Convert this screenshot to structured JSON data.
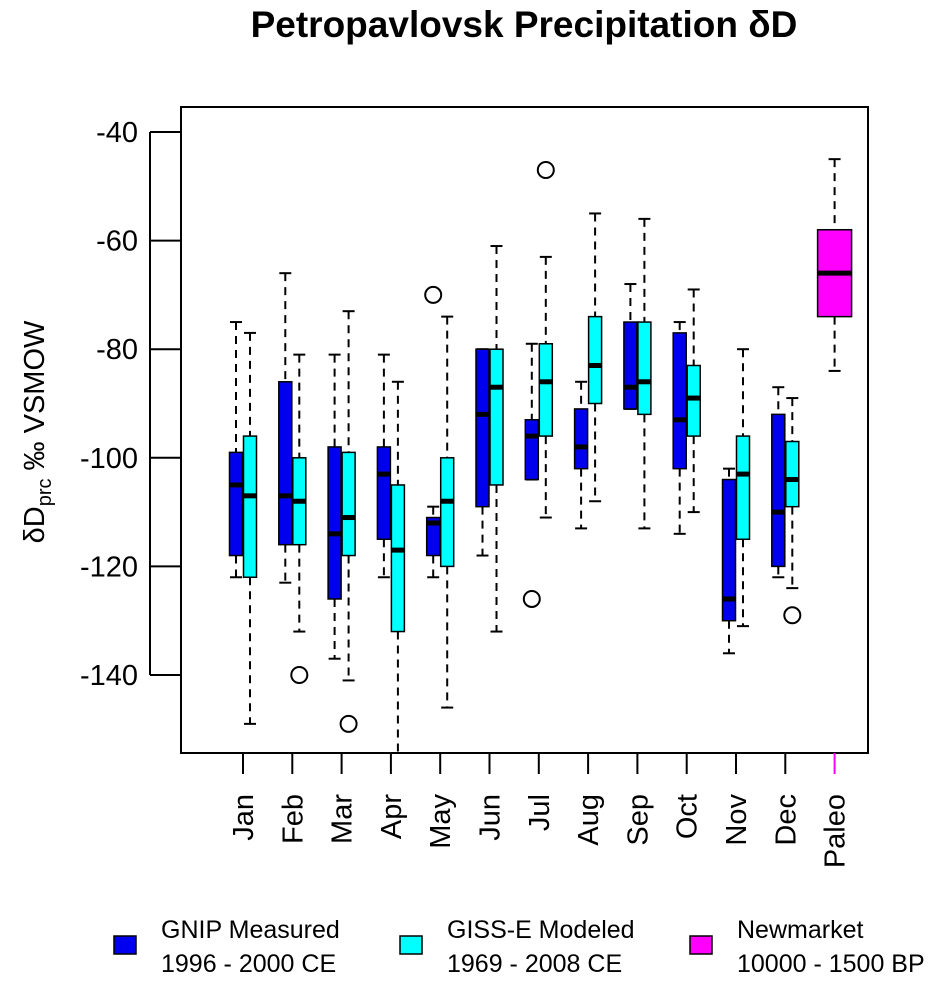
{
  "chart_data": {
    "type": "boxplot",
    "title": "Petropavlovsk Precipitation δD",
    "ylabel": {
      "main": "δD",
      "sub": "prc",
      "rest": " ‰ VSMOW"
    },
    "ylim": [
      -155,
      -35
    ],
    "yticks": [
      -40,
      -60,
      -80,
      -100,
      -120,
      -140
    ],
    "ytick_labels": [
      "-40",
      "-60",
      "-80",
      "-100",
      "-120",
      "-140"
    ],
    "categories": [
      "Jan",
      "Feb",
      "Mar",
      "Apr",
      "May",
      "Jun",
      "Jul",
      "Aug",
      "Sep",
      "Oct",
      "Nov",
      "Dec",
      "Paleo"
    ],
    "category_colors": [
      "#000000",
      "#000000",
      "#000000",
      "#000000",
      "#000000",
      "#000000",
      "#000000",
      "#000000",
      "#000000",
      "#000000",
      "#000000",
      "#000000",
      "#ff00ff"
    ],
    "series": [
      {
        "name": "GNIP Measured",
        "color": "#0000ee",
        "boxes": [
          {
            "cat": "Jan",
            "whislo": -122,
            "q1": -118,
            "med": -105,
            "q3": -99,
            "whishi": -75,
            "outliers": []
          },
          {
            "cat": "Feb",
            "whislo": -123,
            "q1": -116,
            "med": -107,
            "q3": -86,
            "whishi": -66,
            "outliers": []
          },
          {
            "cat": "Mar",
            "whislo": -137,
            "q1": -126,
            "med": -114,
            "q3": -98,
            "whishi": -81,
            "outliers": []
          },
          {
            "cat": "Apr",
            "whislo": -122,
            "q1": -115,
            "med": -103,
            "q3": -98,
            "whishi": -81,
            "outliers": []
          },
          {
            "cat": "May",
            "whislo": -122,
            "q1": -118,
            "med": -112,
            "q3": -111,
            "whishi": -109,
            "outliers": [
              -70
            ]
          },
          {
            "cat": "Jun",
            "whislo": -118,
            "q1": -109,
            "med": -92,
            "q3": -80,
            "whishi": -80,
            "outliers": []
          },
          {
            "cat": "Jul",
            "whislo": -104,
            "q1": -104,
            "med": -96,
            "q3": -93,
            "whishi": -79,
            "outliers": [
              -126
            ]
          },
          {
            "cat": "Aug",
            "whislo": -113,
            "q1": -102,
            "med": -98,
            "q3": -91,
            "whishi": -86,
            "outliers": []
          },
          {
            "cat": "Sep",
            "whislo": -91,
            "q1": -91,
            "med": -87,
            "q3": -75,
            "whishi": -68,
            "outliers": []
          },
          {
            "cat": "Oct",
            "whislo": -114,
            "q1": -102,
            "med": -93,
            "q3": -77,
            "whishi": -75,
            "outliers": []
          },
          {
            "cat": "Nov",
            "whislo": -136,
            "q1": -130,
            "med": -126,
            "q3": -104,
            "whishi": -102,
            "outliers": []
          },
          {
            "cat": "Dec",
            "whislo": -122,
            "q1": -120,
            "med": -110,
            "q3": -92,
            "whishi": -87,
            "outliers": []
          }
        ]
      },
      {
        "name": "GISS-E Modeled",
        "color": "#00ffff",
        "boxes": [
          {
            "cat": "Jan",
            "whislo": -149,
            "q1": -122,
            "med": -107,
            "q3": -96,
            "whishi": -77,
            "outliers": []
          },
          {
            "cat": "Feb",
            "whislo": -132,
            "q1": -116,
            "med": -108,
            "q3": -100,
            "whishi": -81,
            "outliers": [
              -140
            ]
          },
          {
            "cat": "Mar",
            "whislo": -141,
            "q1": -118,
            "med": -111,
            "q3": -99,
            "whishi": -73,
            "outliers": [
              -149
            ]
          },
          {
            "cat": "Apr",
            "whislo": -156,
            "q1": -132,
            "med": -117,
            "q3": -105,
            "whishi": -86,
            "outliers": []
          },
          {
            "cat": "May",
            "whislo": -146,
            "q1": -120,
            "med": -108,
            "q3": -100,
            "whishi": -74,
            "outliers": []
          },
          {
            "cat": "Jun",
            "whislo": -132,
            "q1": -105,
            "med": -87,
            "q3": -80,
            "whishi": -61,
            "outliers": []
          },
          {
            "cat": "Jul",
            "whislo": -111,
            "q1": -96,
            "med": -86,
            "q3": -79,
            "whishi": -63,
            "outliers": [
              -47
            ]
          },
          {
            "cat": "Aug",
            "whislo": -108,
            "q1": -90,
            "med": -83,
            "q3": -74,
            "whishi": -55,
            "outliers": []
          },
          {
            "cat": "Sep",
            "whislo": -113,
            "q1": -92,
            "med": -86,
            "q3": -75,
            "whishi": -56,
            "outliers": []
          },
          {
            "cat": "Oct",
            "whislo": -110,
            "q1": -96,
            "med": -89,
            "q3": -83,
            "whishi": -69,
            "outliers": []
          },
          {
            "cat": "Nov",
            "whislo": -131,
            "q1": -115,
            "med": -103,
            "q3": -96,
            "whishi": -80,
            "outliers": []
          },
          {
            "cat": "Dec",
            "whislo": -124,
            "q1": -109,
            "med": -104,
            "q3": -97,
            "whishi": -89,
            "outliers": [
              -129
            ]
          }
        ]
      },
      {
        "name": "Newmarket",
        "color": "#ff00ff",
        "boxes": [
          {
            "cat": "Paleo",
            "whislo": -84,
            "q1": -74,
            "med": -66,
            "q3": -58,
            "whishi": -45,
            "outliers": []
          }
        ]
      }
    ],
    "legend": [
      {
        "line1": "GNIP Measured",
        "line2": "1996 - 2000 CE",
        "color": "#0000ee"
      },
      {
        "line1": "GISS-E Modeled",
        "line2": "1969 - 2008 CE",
        "color": "#00ffff"
      },
      {
        "line1": "Newmarket",
        "line2": "10000 - 1500 BP",
        "color": "#ff00ff"
      }
    ],
    "legend_position": "bottom"
  }
}
